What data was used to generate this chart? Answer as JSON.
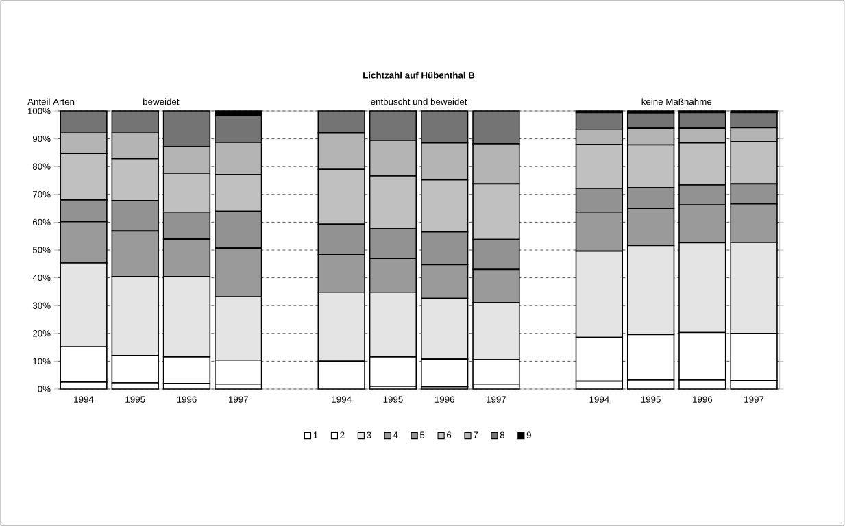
{
  "chart_data": {
    "type": "bar",
    "stacked": true,
    "title": "Lichtzahl auf Hübenthal B",
    "ylabel": "Anteil Arten",
    "annotations": [
      "beweidet",
      "entbuscht und beweidet",
      "keine Maßnahme"
    ],
    "categories": [
      "1994",
      "1995",
      "1996",
      "1997",
      null,
      "1994",
      "1995",
      "1996",
      "1997",
      null,
      "1994",
      "1995",
      "1996",
      "1997"
    ],
    "ylim": [
      0,
      100
    ],
    "yticks": [
      {
        "value": 0,
        "label": "0%"
      },
      {
        "value": 10,
        "label": "10%"
      },
      {
        "value": 20,
        "label": "20%"
      },
      {
        "value": 30,
        "label": "30%"
      },
      {
        "value": 40,
        "label": "40%"
      },
      {
        "value": 50,
        "label": "50%"
      },
      {
        "value": 60,
        "label": "60%"
      },
      {
        "value": 70,
        "label": "70%"
      },
      {
        "value": 80,
        "label": "80%"
      },
      {
        "value": 90,
        "label": "90%"
      },
      {
        "value": 100,
        "label": "100%"
      }
    ],
    "grid": "y",
    "legend": "bottom",
    "series": [
      {
        "name": "1",
        "color": "#ffffff",
        "values": [
          2.5,
          2.2,
          2,
          1.8,
          null,
          0,
          1,
          0.8,
          1.8,
          null,
          2.8,
          3.2,
          3.2,
          3
        ]
      },
      {
        "name": "2",
        "color": "#ffffff",
        "values": [
          12.7,
          9.8,
          9.6,
          8.6,
          null,
          10,
          10.6,
          10,
          8.8,
          null,
          15.8,
          16.4,
          17.1,
          17
        ]
      },
      {
        "name": "3",
        "color": "#e4e4e4",
        "values": [
          30.1,
          28.4,
          28.8,
          22.8,
          null,
          24.8,
          23.2,
          21.8,
          20.4,
          null,
          31,
          32,
          32.3,
          32.7
        ]
      },
      {
        "name": "4",
        "color": "#9a9a9a",
        "values": [
          14.9,
          16.4,
          13.5,
          17.5,
          null,
          13.5,
          12.2,
          12.1,
          12,
          null,
          14,
          13.4,
          13.6,
          13.9
        ]
      },
      {
        "name": "5",
        "color": "#929292",
        "values": [
          7.8,
          11,
          9.7,
          13.2,
          null,
          11,
          10.6,
          11.8,
          10.8,
          null,
          8.6,
          7.4,
          7.2,
          7.2
        ]
      },
      {
        "name": "6",
        "color": "#c0c0c0",
        "values": [
          16.7,
          15,
          14,
          13.2,
          null,
          19.7,
          19,
          18.7,
          20,
          null,
          15.7,
          15.4,
          15.1,
          15.1
        ]
      },
      {
        "name": "7",
        "color": "#b4b4b4",
        "values": [
          7.7,
          9.6,
          9.6,
          11.6,
          null,
          13.2,
          12.8,
          13.3,
          14.4,
          null,
          5.5,
          6,
          5.3,
          5.1
        ]
      },
      {
        "name": "8",
        "color": "#747474",
        "values": [
          7.6,
          7.6,
          12.8,
          9.5,
          null,
          7.8,
          10.6,
          11.5,
          11.8,
          null,
          6,
          5.5,
          5.6,
          5.4
        ]
      },
      {
        "name": "9",
        "color": "#000000",
        "values": [
          0,
          0,
          0,
          1.8,
          null,
          0,
          0,
          0,
          0,
          null,
          0.6,
          0.7,
          0.6,
          0.6
        ]
      }
    ]
  }
}
